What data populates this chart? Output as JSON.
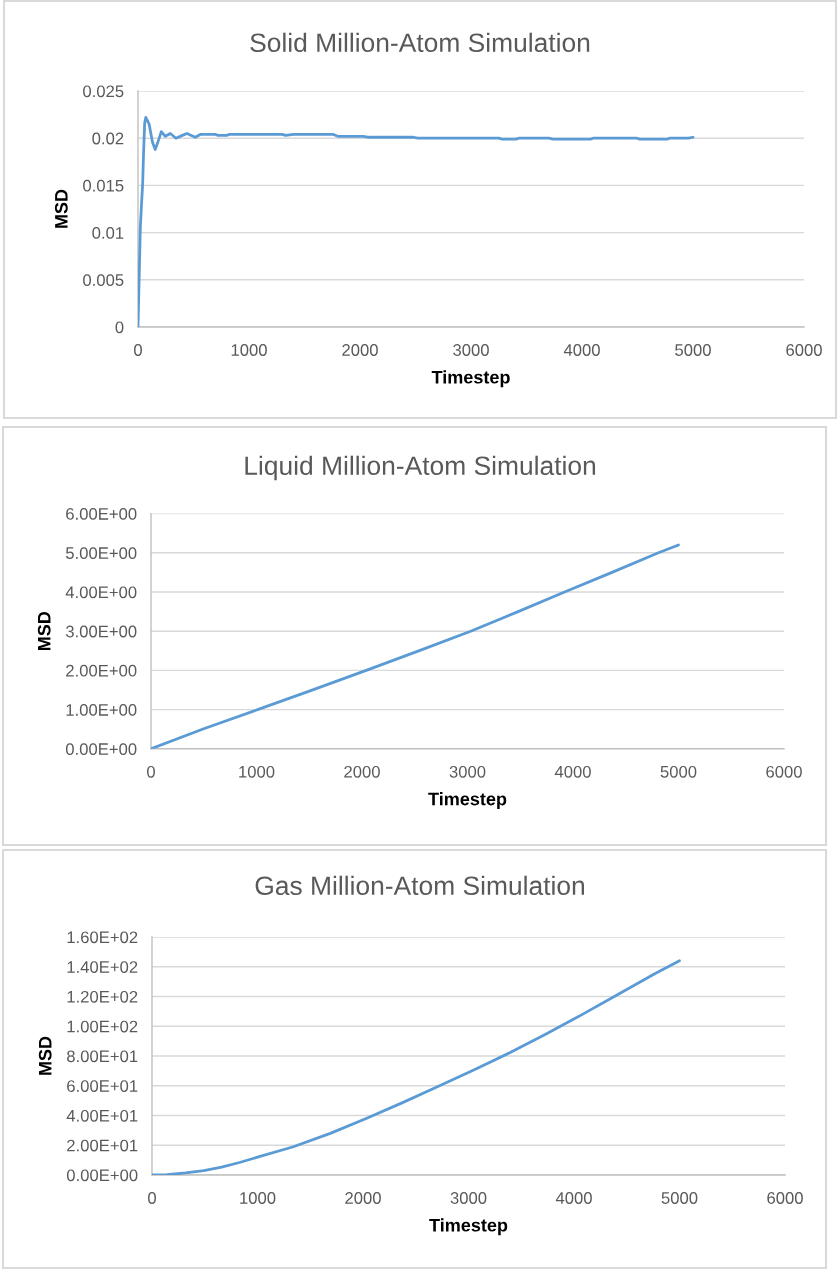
{
  "chart_data": [
    {
      "type": "line",
      "title": "Solid Million-Atom Simulation",
      "xlabel": "Timestep",
      "ylabel": "MSD",
      "series": [
        {
          "color": "#5b9bd5",
          "x": [
            0,
            12,
            21,
            42,
            50,
            60,
            70,
            100,
            130,
            155,
            185,
            210,
            246,
            291,
            342,
            400,
            441,
            516,
            561,
            700,
            720,
            800,
            820,
            1000,
            1300,
            1330,
            1400,
            1760,
            1800,
            2030,
            2080,
            2480,
            2520,
            3250,
            3280,
            3405,
            3430,
            3700,
            3740,
            4077,
            4100,
            4495,
            4520,
            4766,
            4790,
            4960,
            5000
          ],
          "values": [
            0,
            0.006,
            0.0106,
            0.0152,
            0.0184,
            0.0216,
            0.0222,
            0.0215,
            0.0196,
            0.0188,
            0.0198,
            0.0207,
            0.0202,
            0.0205,
            0.02,
            0.0203,
            0.0205,
            0.0201,
            0.0204,
            0.0204,
            0.0203,
            0.0203,
            0.0204,
            0.0204,
            0.0204,
            0.0203,
            0.0204,
            0.0204,
            0.0202,
            0.0202,
            0.0201,
            0.0201,
            0.02,
            0.02,
            0.0199,
            0.0199,
            0.02,
            0.02,
            0.0199,
            0.0199,
            0.02,
            0.02,
            0.0199,
            0.0199,
            0.02,
            0.02,
            0.0201
          ]
        }
      ],
      "xlim": [
        0,
        6000
      ],
      "ylim": [
        0,
        0.025
      ],
      "xticks": [
        0,
        1000,
        2000,
        3000,
        4000,
        5000,
        6000
      ],
      "yticks": [
        0,
        0.005,
        0.01,
        0.015,
        0.02,
        0.025
      ],
      "grid": "y"
    },
    {
      "type": "line",
      "title": "Liquid Million-Atom Simulation",
      "xlabel": "Timestep",
      "ylabel": "MSD",
      "series": [
        {
          "color": "#5b9bd5",
          "x": [
            0,
            500,
            1010,
            1520,
            2040,
            2550,
            3030,
            3480,
            3920,
            4370,
            4810,
            5000
          ],
          "values": [
            0,
            0.51,
            1.0,
            1.49,
            2.0,
            2.51,
            3.0,
            3.5,
            4.0,
            4.5,
            5.0,
            5.2
          ]
        }
      ],
      "xlim": [
        0,
        6000
      ],
      "ylim": [
        0,
        6
      ],
      "xticks": [
        0,
        1000,
        2000,
        3000,
        4000,
        5000,
        6000
      ],
      "yticks": [
        {
          "value": 0,
          "label": "0.00E+00"
        },
        {
          "value": 1,
          "label": "1.00E+00"
        },
        {
          "value": 2,
          "label": "2.00E+00"
        },
        {
          "value": 3,
          "label": "3.00E+00"
        },
        {
          "value": 4,
          "label": "4.00E+00"
        },
        {
          "value": 5,
          "label": "5.00E+00"
        },
        {
          "value": 6,
          "label": "6.00E+00"
        }
      ],
      "grid": "y"
    },
    {
      "type": "line",
      "title": "Gas Million-Atom Simulation",
      "xlabel": "Timestep",
      "ylabel": "MSD",
      "series": [
        {
          "color": "#5b9bd5",
          "x": [
            0,
            140,
            320,
            490,
            660,
            830,
            1000,
            1340,
            1690,
            2030,
            2370,
            2710,
            3060,
            3400,
            3740,
            4080,
            4420,
            4770,
            5000
          ],
          "values": [
            0,
            0.2,
            1.4,
            2.9,
            5.3,
            8.4,
            12,
            19,
            28,
            38,
            48.5,
            59.5,
            71,
            82.5,
            95,
            108,
            121.5,
            135.5,
            144
          ]
        }
      ],
      "xlim": [
        0,
        6000
      ],
      "ylim": [
        0,
        160
      ],
      "xticks": [
        0,
        1000,
        2000,
        3000,
        4000,
        5000,
        6000
      ],
      "yticks": [
        {
          "value": 0,
          "label": "0.00E+00"
        },
        {
          "value": 20,
          "label": "2.00E+01"
        },
        {
          "value": 40,
          "label": "4.00E+01"
        },
        {
          "value": 60,
          "label": "6.00E+01"
        },
        {
          "value": 80,
          "label": "8.00E+01"
        },
        {
          "value": 100,
          "label": "1.00E+02"
        },
        {
          "value": 120,
          "label": "1.20E+02"
        },
        {
          "value": 140,
          "label": "1.40E+02"
        },
        {
          "value": 160,
          "label": "1.60E+02"
        }
      ],
      "grid": "y"
    }
  ]
}
